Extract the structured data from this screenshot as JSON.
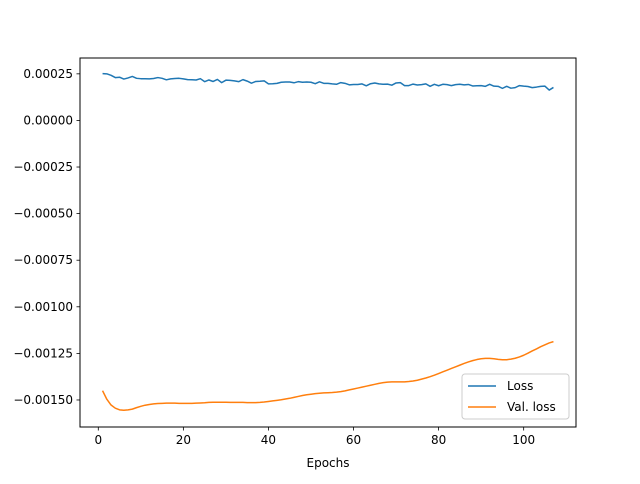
{
  "chart_data": {
    "type": "line",
    "xlabel": "Epochs",
    "ylabel": "",
    "xlim": [
      -4.3,
      112.3
    ],
    "ylim": [
      -0.001645,
      0.000335
    ],
    "xticks": [
      0,
      20,
      40,
      60,
      80,
      100
    ],
    "xtick_labels": [
      "0",
      "20",
      "40",
      "60",
      "80",
      "100"
    ],
    "yticks": [
      0.00025,
      0.0,
      -0.00025,
      -0.0005,
      -0.00075,
      -0.001,
      -0.00125,
      -0.0015
    ],
    "ytick_labels": [
      "0.00025",
      "0.00000",
      "−0.00025",
      "−0.00050",
      "−0.00075",
      "−0.00100",
      "−0.00125",
      "−0.00150"
    ],
    "grid": false,
    "legend_position": "lower right",
    "x": [
      1,
      2,
      3,
      4,
      5,
      6,
      7,
      8,
      9,
      10,
      11,
      12,
      13,
      14,
      15,
      16,
      17,
      18,
      19,
      20,
      21,
      22,
      23,
      24,
      25,
      26,
      27,
      28,
      29,
      30,
      31,
      32,
      33,
      34,
      35,
      36,
      37,
      38,
      39,
      40,
      41,
      42,
      43,
      44,
      45,
      46,
      47,
      48,
      49,
      50,
      51,
      52,
      53,
      54,
      55,
      56,
      57,
      58,
      59,
      60,
      61,
      62,
      63,
      64,
      65,
      66,
      67,
      68,
      69,
      70,
      71,
      72,
      73,
      74,
      75,
      76,
      77,
      78,
      79,
      80,
      81,
      82,
      83,
      84,
      85,
      86,
      87,
      88,
      89,
      90,
      91,
      92,
      93,
      94,
      95,
      96,
      97,
      98,
      99,
      100,
      101,
      102,
      103,
      104,
      105,
      106,
      107
    ],
    "series": [
      {
        "name": "Loss",
        "color": "#1f77b4",
        "values": [
          0.000251,
          0.00025,
          0.000242,
          0.00023,
          0.000232,
          0.000222,
          0.000228,
          0.000236,
          0.000226,
          0.000224,
          0.000224,
          0.000223,
          0.000225,
          0.00023,
          0.000226,
          0.000218,
          0.000223,
          0.000225,
          0.000226,
          0.000223,
          0.000219,
          0.000218,
          0.000217,
          0.000224,
          0.000208,
          0.000217,
          0.000209,
          0.00022,
          0.000203,
          0.000216,
          0.000215,
          0.000212,
          0.000208,
          0.000219,
          0.000211,
          0.0002,
          0.000209,
          0.00021,
          0.000212,
          0.000196,
          0.000197,
          0.000199,
          0.000205,
          0.000206,
          0.000206,
          0.000202,
          0.000208,
          0.000205,
          0.000206,
          0.000205,
          0.000197,
          0.000207,
          0.000199,
          0.000199,
          0.000196,
          0.000194,
          0.000203,
          0.000199,
          0.000191,
          0.000193,
          0.000193,
          0.000196,
          0.000186,
          0.000197,
          0.000201,
          0.000196,
          0.000194,
          0.000195,
          0.000189,
          0.000201,
          0.000203,
          0.000187,
          0.000187,
          0.000195,
          0.00019,
          0.000192,
          0.000196,
          0.000183,
          0.000194,
          0.000186,
          0.000194,
          0.000192,
          0.000187,
          0.000192,
          0.000194,
          0.000191,
          0.000193,
          0.000185,
          0.000186,
          0.000187,
          0.000183,
          0.000194,
          0.000184,
          0.000183,
          0.000172,
          0.000183,
          0.000173,
          0.000176,
          0.000187,
          0.000184,
          0.000182,
          0.000176,
          0.000179,
          0.000183,
          0.000184,
          0.000163,
          0.000177
        ]
      },
      {
        "name": "Val. loss",
        "color": "#ff7f0e",
        "values": [
          -0.00145,
          -0.001496,
          -0.001527,
          -0.001544,
          -0.001553,
          -0.001555,
          -0.001553,
          -0.001549,
          -0.001541,
          -0.001534,
          -0.001528,
          -0.001524,
          -0.001521,
          -0.001519,
          -0.001518,
          -0.001517,
          -0.001517,
          -0.001517,
          -0.001518,
          -0.001518,
          -0.001518,
          -0.001518,
          -0.001517,
          -0.001516,
          -0.001515,
          -0.001513,
          -0.001512,
          -0.001512,
          -0.001512,
          -0.001512,
          -0.001513,
          -0.001513,
          -0.001513,
          -0.001513,
          -0.001514,
          -0.001514,
          -0.001514,
          -0.001513,
          -0.001511,
          -0.001508,
          -0.001505,
          -0.001502,
          -0.001499,
          -0.001495,
          -0.001491,
          -0.001486,
          -0.001481,
          -0.001476,
          -0.001472,
          -0.001469,
          -0.001466,
          -0.001464,
          -0.001462,
          -0.001461,
          -0.00146,
          -0.001458,
          -0.001455,
          -0.001451,
          -0.001446,
          -0.001441,
          -0.001436,
          -0.001431,
          -0.001426,
          -0.001421,
          -0.001416,
          -0.001411,
          -0.001407,
          -0.001404,
          -0.001403,
          -0.001403,
          -0.001403,
          -0.001403,
          -0.001401,
          -0.001398,
          -0.001394,
          -0.001388,
          -0.001382,
          -0.001375,
          -0.001367,
          -0.001358,
          -0.001349,
          -0.00134,
          -0.001331,
          -0.001322,
          -0.001313,
          -0.001304,
          -0.001296,
          -0.001289,
          -0.001283,
          -0.001279,
          -0.001277,
          -0.001277,
          -0.001279,
          -0.001282,
          -0.001284,
          -0.001284,
          -0.001281,
          -0.001276,
          -0.001269,
          -0.00126,
          -0.001249,
          -0.001237,
          -0.001226,
          -0.001214,
          -0.001204,
          -0.001194,
          -0.001187
        ]
      }
    ]
  }
}
